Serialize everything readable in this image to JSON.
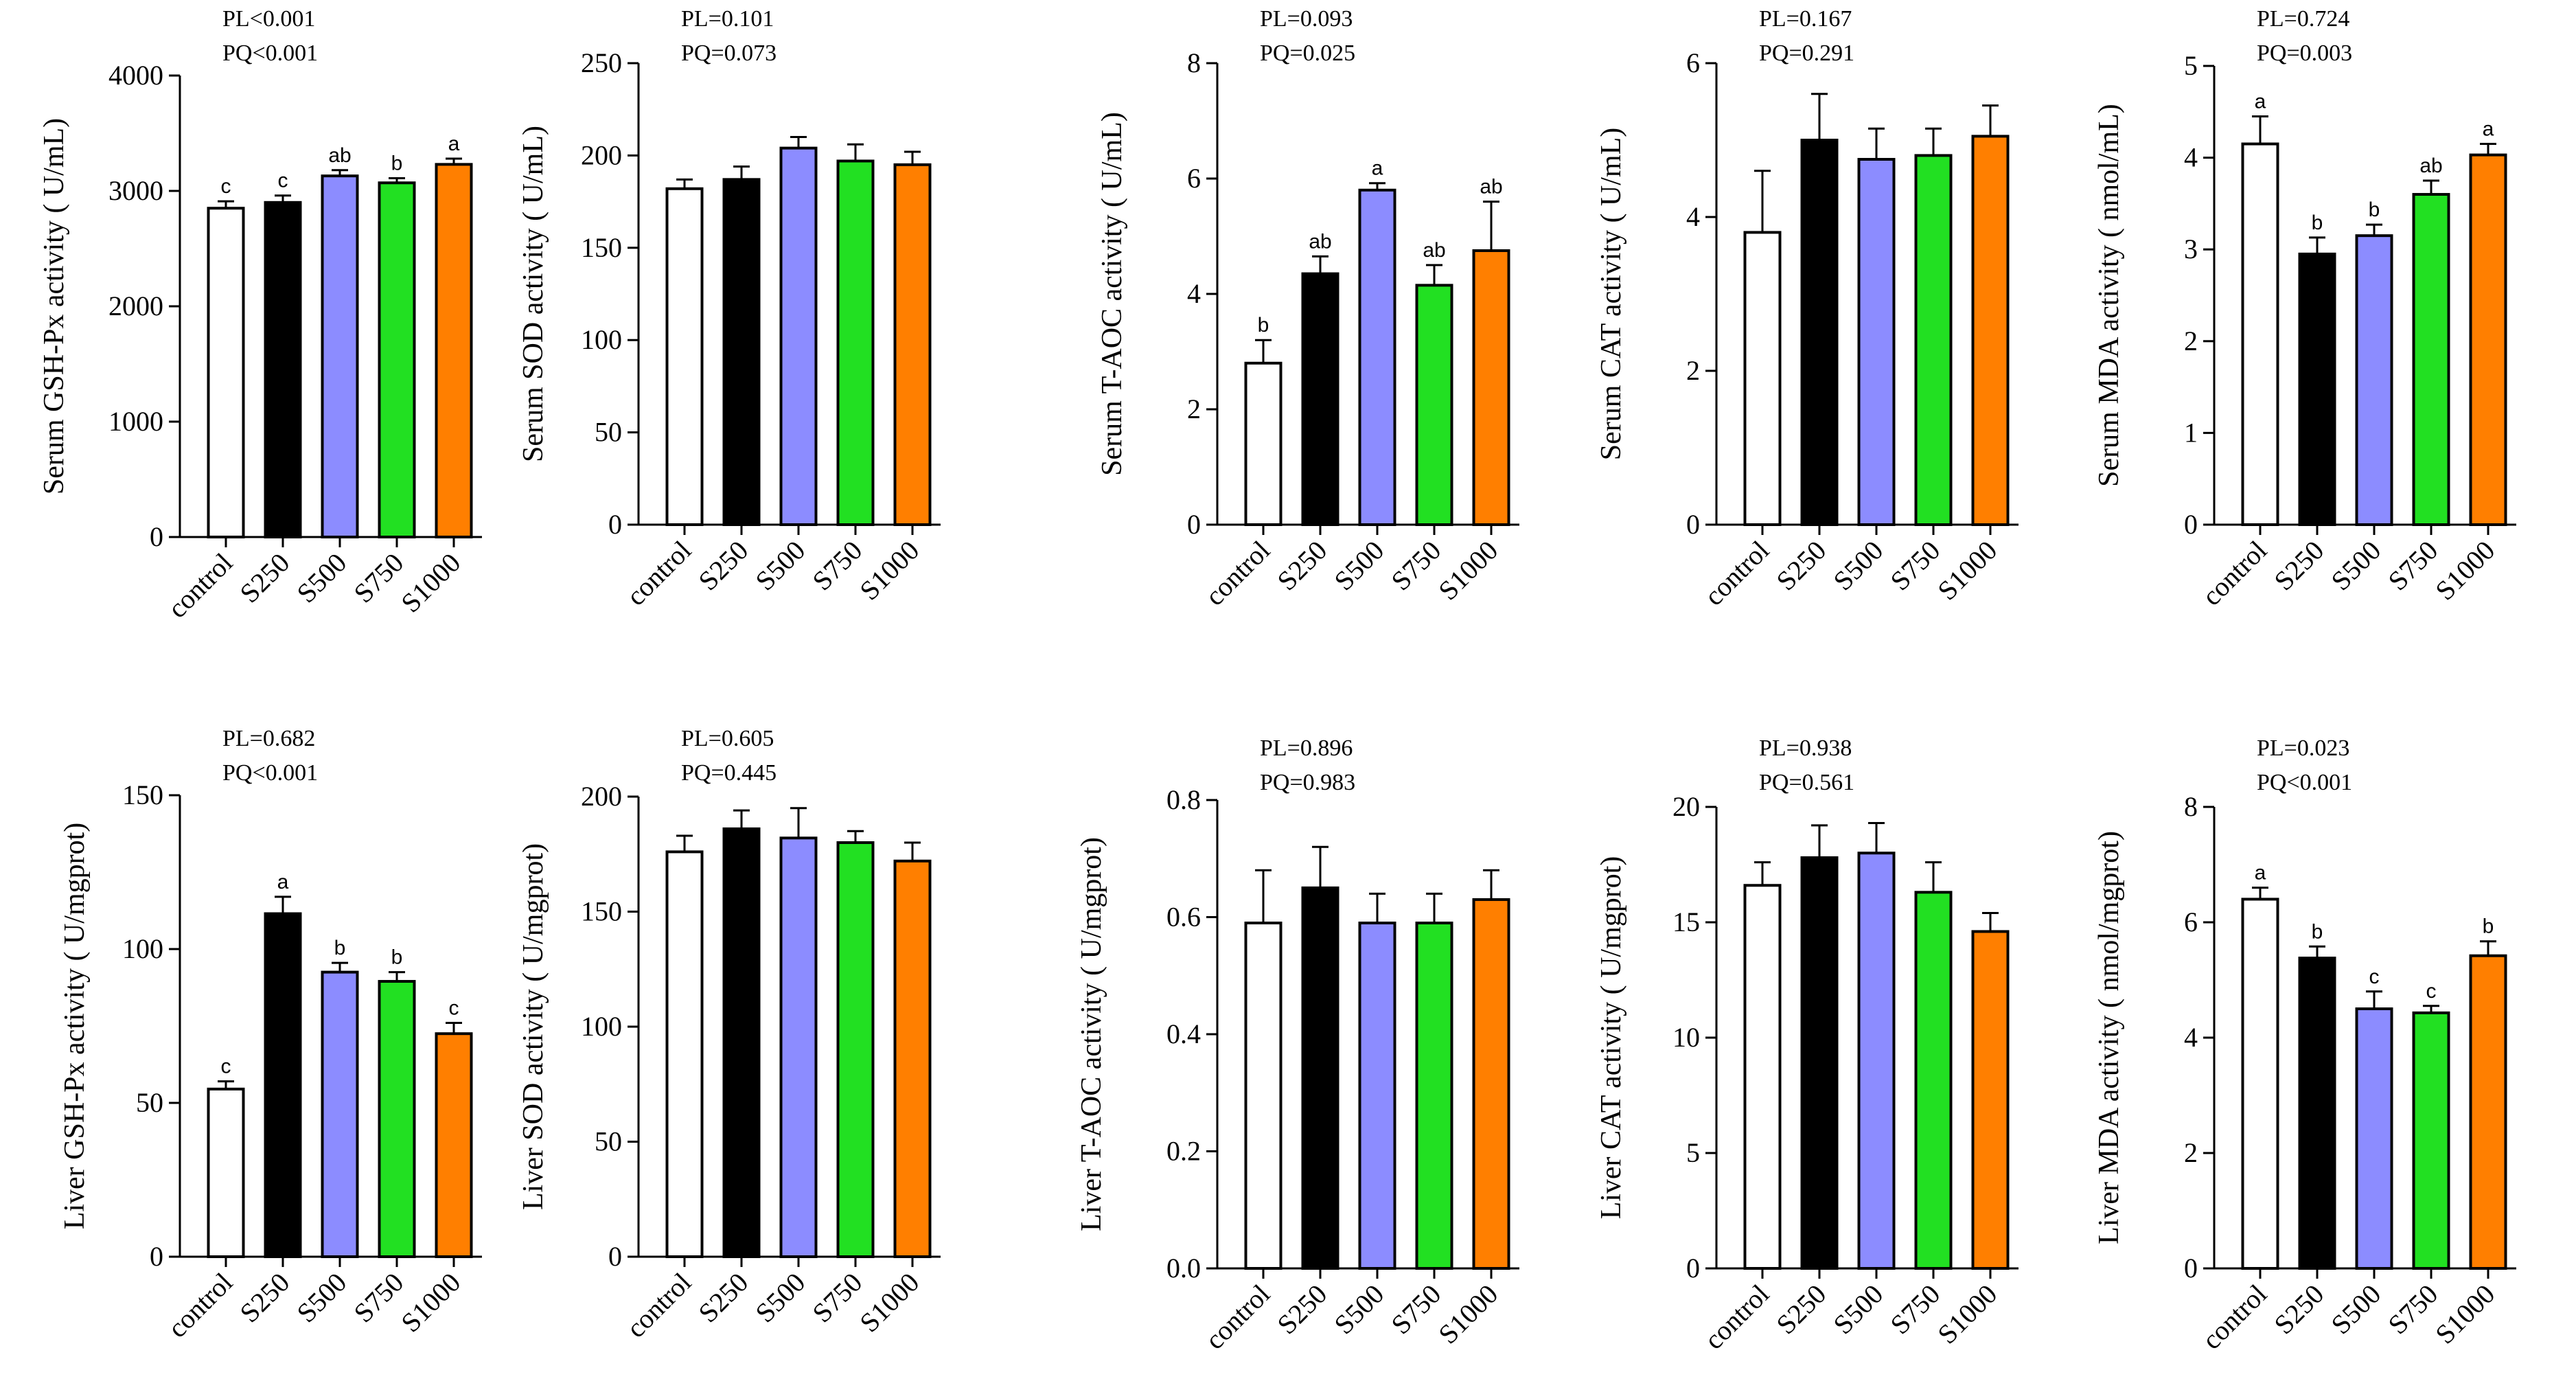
{
  "figure": {
    "categories": [
      "control",
      "S250",
      "S500",
      "S750",
      "S1000"
    ],
    "colors": [
      "#ffffff",
      "#000000",
      "#8c8cff",
      "#22e022",
      "#ff7f00"
    ]
  },
  "chart_data": [
    {
      "type": "bar",
      "id": "serum-gsh-px",
      "ylabel": "Serum GSH-Px activity ( U/mL)",
      "stats": [
        "PL<0.001",
        "PQ<0.001"
      ],
      "ylim": [
        0,
        4000
      ],
      "yticks": [
        0,
        1000,
        2000,
        3000,
        4000
      ],
      "values": [
        2850,
        2900,
        3130,
        3070,
        3230
      ],
      "errors": [
        60,
        60,
        50,
        40,
        50
      ],
      "letters": [
        "c",
        "c",
        "ab",
        "b",
        "a"
      ]
    },
    {
      "type": "bar",
      "id": "serum-sod",
      "ylabel": "Serum SOD activity ( U/mL)",
      "stats": [
        "PL=0.101",
        "PQ=0.073"
      ],
      "ylim": [
        0,
        250
      ],
      "yticks": [
        0,
        50,
        100,
        150,
        200,
        250
      ],
      "values": [
        182,
        187,
        204,
        197,
        195
      ],
      "errors": [
        5,
        7,
        6,
        9,
        7
      ],
      "letters": [
        "",
        "",
        "",
        "",
        ""
      ]
    },
    {
      "type": "bar",
      "id": "serum-t-aoc",
      "ylabel": "Serum T-AOC activity ( U/mL)",
      "stats": [
        "PL=0.093",
        "PQ=0.025"
      ],
      "ylim": [
        0,
        8
      ],
      "yticks": [
        0,
        2,
        4,
        6,
        8
      ],
      "values": [
        2.8,
        4.35,
        5.8,
        4.15,
        4.75
      ],
      "errors": [
        0.4,
        0.3,
        0.12,
        0.35,
        0.85
      ],
      "letters": [
        "b",
        "ab",
        "a",
        "ab",
        "ab"
      ]
    },
    {
      "type": "bar",
      "id": "serum-cat",
      "ylabel": "Serum CAT activity ( U/mL)",
      "stats": [
        "PL=0.167",
        "PQ=0.291"
      ],
      "ylim": [
        0,
        6
      ],
      "yticks": [
        0,
        2,
        4,
        6
      ],
      "values": [
        3.8,
        5.0,
        4.75,
        4.8,
        5.05
      ],
      "errors": [
        0.8,
        0.6,
        0.4,
        0.35,
        0.4
      ],
      "letters": [
        "",
        "",
        "",
        "",
        ""
      ]
    },
    {
      "type": "bar",
      "id": "serum-mda",
      "ylabel": "Serum MDA activity ( nmol/mL)",
      "stats": [
        "PL=0.724",
        "PQ=0.003"
      ],
      "ylim": [
        0,
        5
      ],
      "yticks": [
        0,
        1,
        2,
        3,
        4,
        5
      ],
      "values": [
        4.15,
        2.95,
        3.15,
        3.6,
        4.03
      ],
      "errors": [
        0.3,
        0.18,
        0.12,
        0.15,
        0.12
      ],
      "letters": [
        "a",
        "b",
        "b",
        "ab",
        "a"
      ]
    },
    {
      "type": "bar",
      "id": "liver-gsh-px",
      "ylabel": "Liver GSH-Px activity ( U/mgprot)",
      "stats": [
        "PL=0.682",
        "PQ<0.001"
      ],
      "ylim": [
        0,
        150
      ],
      "yticks": [
        0,
        50,
        100,
        150
      ],
      "values": [
        54.5,
        111.5,
        92.5,
        89.5,
        72.5
      ],
      "errors": [
        2.5,
        5.5,
        3,
        3,
        3.5
      ],
      "letters": [
        "c",
        "a",
        "b",
        "b",
        "c"
      ]
    },
    {
      "type": "bar",
      "id": "liver-sod",
      "ylabel": "Liver SOD activity ( U/mgprot)",
      "stats": [
        "PL=0.605",
        "PQ=0.445"
      ],
      "ylim": [
        0,
        200
      ],
      "yticks": [
        0,
        50,
        100,
        150,
        200
      ],
      "values": [
        176,
        186,
        182,
        180,
        172
      ],
      "errors": [
        7,
        8,
        13,
        5,
        8
      ],
      "letters": [
        "",
        "",
        "",
        "",
        ""
      ]
    },
    {
      "type": "bar",
      "id": "liver-t-aoc",
      "ylabel": "Liver T-AOC activity ( U/mgprot)",
      "stats": [
        "PL=0.896",
        "PQ=0.983"
      ],
      "ylim": [
        0,
        0.8
      ],
      "yticks": [
        0.0,
        0.2,
        0.4,
        0.6,
        0.8
      ],
      "ytick_labels": [
        "0.0",
        "0.2",
        "0.4",
        "0.6",
        "0.8"
      ],
      "values": [
        0.59,
        0.65,
        0.59,
        0.59,
        0.63
      ],
      "errors": [
        0.09,
        0.07,
        0.05,
        0.05,
        0.05
      ],
      "letters": [
        "",
        "",
        "",
        "",
        ""
      ]
    },
    {
      "type": "bar",
      "id": "liver-cat",
      "ylabel": "Liver CAT activity ( U/mgprot)",
      "stats": [
        "PL=0.938",
        "PQ=0.561"
      ],
      "ylim": [
        0,
        20
      ],
      "yticks": [
        0,
        5,
        10,
        15,
        20
      ],
      "values": [
        16.6,
        17.8,
        18.0,
        16.3,
        14.6
      ],
      "errors": [
        1.0,
        1.4,
        1.3,
        1.3,
        0.8
      ],
      "letters": [
        "",
        "",
        "",
        "",
        ""
      ]
    },
    {
      "type": "bar",
      "id": "liver-mda",
      "ylabel": "Liver  MDA activity ( nmol/mgprot)",
      "stats": [
        "PL=0.023",
        "PQ<0.001"
      ],
      "ylim": [
        0,
        8
      ],
      "yticks": [
        0,
        2,
        4,
        6,
        8
      ],
      "values": [
        6.4,
        5.38,
        4.5,
        4.43,
        5.42
      ],
      "errors": [
        0.2,
        0.2,
        0.3,
        0.12,
        0.25
      ],
      "letters": [
        "a",
        "b",
        "c",
        "c",
        "b"
      ]
    }
  ]
}
